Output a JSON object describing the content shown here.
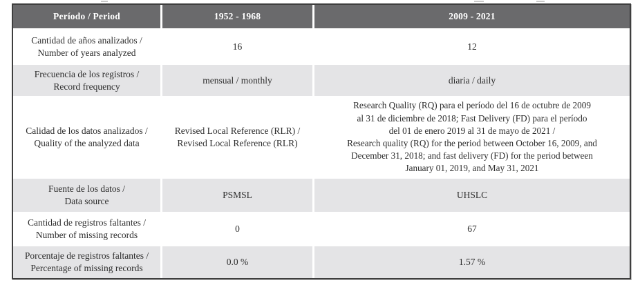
{
  "table": {
    "header": {
      "col_label": "Período / Period",
      "col_period1": "1952 - 1968",
      "col_period2": "2009 - 2021"
    },
    "rows": [
      {
        "label_es": "Cantidad de años analizados /",
        "label_en": "Number of years analyzed",
        "period1": "16",
        "period2": "12"
      },
      {
        "label_es": "Frecuencia de los registros /",
        "label_en": "Record frequency",
        "period1": "mensual / monthly",
        "period2": "diaria / daily"
      },
      {
        "label_es": "Calidad de los datos analizados /",
        "label_en": "Quality of the analyzed data",
        "period1_lines": [
          "Revised Local Reference (RLR) /",
          "Revised Local Reference (RLR)"
        ],
        "period2_lines": [
          "Research Quality (RQ) para el período del 16 de octubre de 2009",
          "al 31 de diciembre de 2018; Fast Delivery (FD) para el período",
          "del 01 de enero 2019 al 31 de mayo de 2021 /",
          "Research quality (RQ) for the period between October 16, 2009, and",
          "December 31, 2018; and fast delivery (FD) for the period between",
          "January 01, 2019, and May 31, 2021"
        ]
      },
      {
        "label_es": "Fuente de los datos /",
        "label_en": "Data source",
        "period1": "PSMSL",
        "period2": "UHSLC"
      },
      {
        "label_es": "Cantidad de registros faltantes /",
        "label_en": "Number of missing records",
        "period1": "0",
        "period2": "67"
      },
      {
        "label_es": "Porcentaje de registros faltantes /",
        "label_en": "Percentage of missing records",
        "period1": "0.0 %",
        "period2": "1.57 %"
      }
    ],
    "colors": {
      "header_bg": "#6a6a6c",
      "zebra_bg": "#e4e4e6",
      "border": "#3e3e3e",
      "text": "#2d2d2d",
      "header_text": "#ffffff"
    }
  },
  "chart_data": {
    "type": "table",
    "title": "",
    "columns": [
      "Período / Period",
      "1952 - 1968",
      "2009 - 2021"
    ],
    "rows": [
      [
        "Cantidad de años analizados / Number of years analyzed",
        "16",
        "12"
      ],
      [
        "Frecuencia de los registros / Record frequency",
        "mensual / monthly",
        "diaria / daily"
      ],
      [
        "Calidad de los datos analizados / Quality of the analyzed data",
        "Revised Local Reference (RLR) / Revised Local Reference (RLR)",
        "Research Quality (RQ) para el período del 16 de octubre de 2009 al 31 de diciembre de 2018; Fast Delivery (FD) para el período del 01 de enero 2019 al 31 de mayo de 2021 / Research quality (RQ) for the period between October 16, 2009, and December 31, 2018; and fast delivery (FD) for the period between January 01, 2019, and May 31, 2021"
      ],
      [
        "Fuente de los datos / Data source",
        "PSMSL",
        "UHSLC"
      ],
      [
        "Cantidad de registros faltantes / Number of missing records",
        "0",
        "67"
      ],
      [
        "Porcentaje de registros faltantes / Percentage of missing records",
        "0.0 %",
        "1.57 %"
      ]
    ]
  }
}
